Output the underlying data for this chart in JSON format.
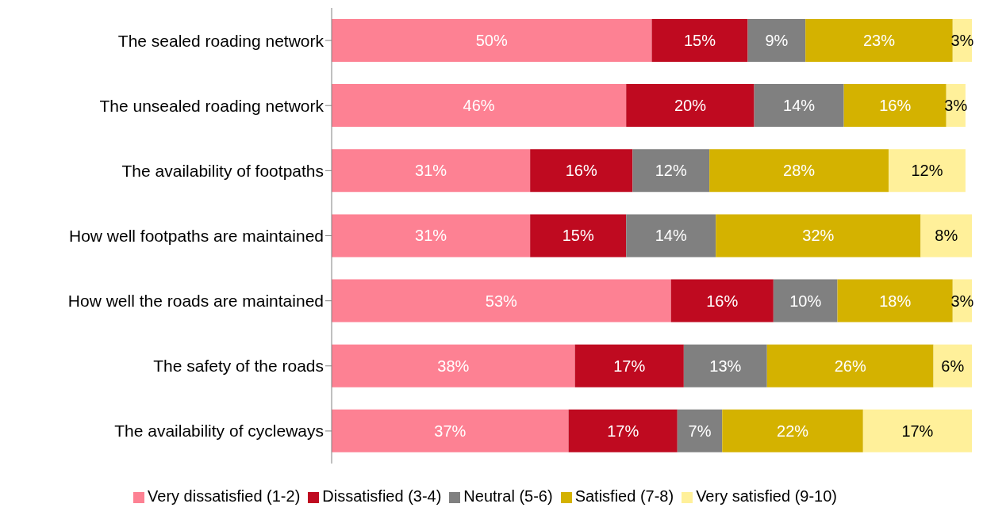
{
  "chart_data": {
    "type": "bar",
    "orientation": "horizontal",
    "stacked": true,
    "legend": "bottom",
    "grid": false,
    "tick_labels": "y",
    "xlim": [
      0,
      100
    ],
    "categories": [
      "The sealed roading network",
      "The unsealed roading network",
      "The availability of footpaths",
      "How well footpaths are maintained",
      "How well the roads are maintained",
      "The safety of the roads",
      "The availability of cycleways"
    ],
    "series": [
      {
        "name": "Very dissatisfied (1-2)",
        "color": "#fd8193",
        "values": [
          50,
          46,
          31,
          31,
          53,
          38,
          37
        ],
        "value_labels": [
          "50%",
          "46%",
          "31%",
          "31%",
          "53%",
          "38%",
          "37%"
        ]
      },
      {
        "name": "Dissatisfied (3-4)",
        "color": "#bf0a20",
        "values": [
          15,
          20,
          16,
          15,
          16,
          17,
          17
        ],
        "value_labels": [
          "15%",
          "20%",
          "16%",
          "15%",
          "16%",
          "17%",
          "17%"
        ]
      },
      {
        "name": "Neutral (5-6)",
        "color": "#808080",
        "values": [
          9,
          14,
          12,
          14,
          10,
          13,
          7
        ],
        "value_labels": [
          "9%",
          "14%",
          "12%",
          "14%",
          "10%",
          "13%",
          "7%"
        ]
      },
      {
        "name": "Satisfied (7-8)",
        "color": "#d4b200",
        "values": [
          23,
          16,
          28,
          32,
          18,
          26,
          22
        ],
        "value_labels": [
          "23%",
          "16%",
          "28%",
          "32%",
          "18%",
          "26%",
          "22%"
        ]
      },
      {
        "name": "Very satisfied (9-10)",
        "color": "#fff09a",
        "values": [
          3,
          3,
          12,
          8,
          3,
          6,
          17
        ],
        "value_labels": [
          "3%",
          "3%",
          "12%",
          "8%",
          "3%",
          "6%",
          "17%"
        ]
      }
    ]
  }
}
